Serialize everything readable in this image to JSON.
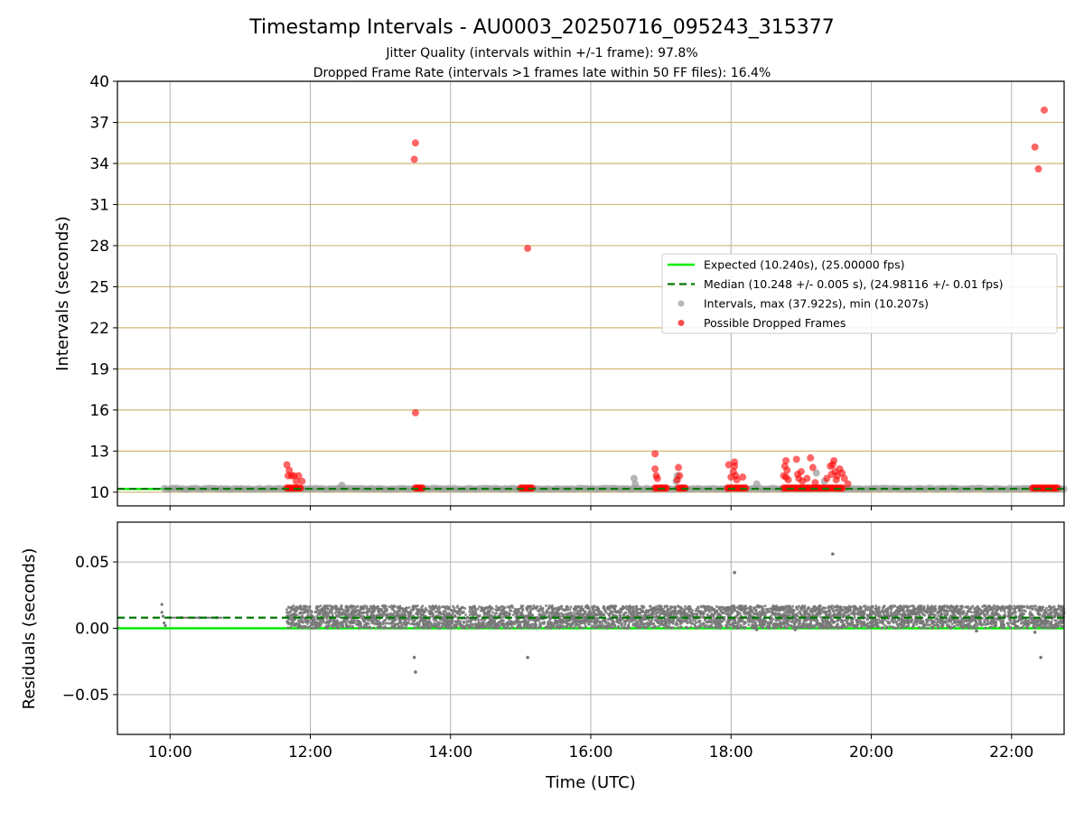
{
  "figure": {
    "title": "Timestamp Intervals - AU0003_20250716_095243_315377",
    "subtitle_1": "Jitter Quality (intervals within +/-1 frame): 97.8%",
    "subtitle_2": "Dropped Frame Rate (intervals >1 frames late within 50 FF files): 16.4%",
    "colors": {
      "expected": "#00ee00",
      "median": "#007700",
      "interval": "#999999",
      "dropped": "#ff0000",
      "hline": "#d2b778",
      "residual": "#777777"
    }
  },
  "chart_data": [
    {
      "type": "scatter",
      "name": "intervals",
      "ylabel": "Intervals (seconds)",
      "xlim": [
        "09:15",
        "22:45"
      ],
      "ylim": [
        9,
        40
      ],
      "yticks": [
        10,
        13,
        16,
        19,
        22,
        25,
        28,
        31,
        34,
        37,
        40
      ],
      "ytick_labels": [
        "10",
        "13",
        "16",
        "19",
        "22",
        "25",
        "28",
        "31",
        "34",
        "37",
        "40"
      ],
      "grid": true,
      "legend_position": "center-right",
      "legend": [
        {
          "label": "Expected (10.240s), (25.00000 fps)",
          "kind": "line-solid",
          "color": "#00ee00"
        },
        {
          "label": "Median (10.248 +/- 0.005 s), (24.98116 +/- 0.01 fps)",
          "kind": "line-dashed",
          "color": "#007700"
        },
        {
          "label": "Intervals, max (37.922s), min (10.207s)",
          "kind": "dot",
          "color": "#999999"
        },
        {
          "label": "Possible Dropped Frames",
          "kind": "dot",
          "color": "#ff0000"
        }
      ],
      "expected": 10.24,
      "median": 10.248,
      "interval_band": {
        "x_start": "09:55",
        "x_end": "22:45",
        "y": 10.248
      },
      "dropped_clusters": [
        {
          "x_start": "11:40",
          "x_end": "11:52",
          "y": 10.3
        },
        {
          "x_start": "13:30",
          "x_end": "13:37",
          "y": 10.3
        },
        {
          "x_start": "15:00",
          "x_end": "15:10",
          "y": 10.3
        },
        {
          "x_start": "16:55",
          "x_end": "17:05",
          "y": 10.3
        },
        {
          "x_start": "17:15",
          "x_end": "17:22",
          "y": 10.3
        },
        {
          "x_start": "17:57",
          "x_end": "18:14",
          "y": 10.3
        },
        {
          "x_start": "18:45",
          "x_end": "19:36",
          "y": 10.3
        },
        {
          "x_start": "22:18",
          "x_end": "22:40",
          "y": 10.3
        }
      ],
      "gray_points": [
        {
          "x": "16:37",
          "y": 11.0
        },
        {
          "x": "16:38",
          "y": 10.6
        },
        {
          "x": "17:13",
          "y": 10.8
        },
        {
          "x": "17:14",
          "y": 11.2
        },
        {
          "x": "18:22",
          "y": 10.6
        },
        {
          "x": "19:13",
          "y": 11.4
        },
        {
          "x": "19:20",
          "y": 10.8
        },
        {
          "x": "12:27",
          "y": 10.5
        }
      ],
      "dropped_points": [
        {
          "x": "13:30",
          "y": 35.5
        },
        {
          "x": "13:29",
          "y": 34.3
        },
        {
          "x": "13:30",
          "y": 15.8
        },
        {
          "x": "15:06",
          "y": 27.8
        },
        {
          "x": "22:20",
          "y": 35.2
        },
        {
          "x": "22:23",
          "y": 33.6
        },
        {
          "x": "22:28",
          "y": 37.9
        },
        {
          "x": "11:40",
          "y": 12.0
        },
        {
          "x": "11:42",
          "y": 11.6
        },
        {
          "x": "11:41",
          "y": 11.2
        },
        {
          "x": "11:44",
          "y": 11.2
        },
        {
          "x": "11:46",
          "y": 11.2
        },
        {
          "x": "11:48",
          "y": 10.8
        },
        {
          "x": "11:50",
          "y": 11.2
        },
        {
          "x": "11:53",
          "y": 10.8
        },
        {
          "x": "16:55",
          "y": 12.8
        },
        {
          "x": "16:55",
          "y": 11.7
        },
        {
          "x": "16:56",
          "y": 11.2
        },
        {
          "x": "16:57",
          "y": 11.0
        },
        {
          "x": "17:15",
          "y": 11.8
        },
        {
          "x": "17:16",
          "y": 11.2
        },
        {
          "x": "17:14",
          "y": 10.9
        },
        {
          "x": "17:58",
          "y": 12.0
        },
        {
          "x": "18:03",
          "y": 12.2
        },
        {
          "x": "18:03",
          "y": 11.9
        },
        {
          "x": "18:02",
          "y": 11.5
        },
        {
          "x": "18:00",
          "y": 11.1
        },
        {
          "x": "18:04",
          "y": 11.2
        },
        {
          "x": "18:05",
          "y": 10.9
        },
        {
          "x": "18:10",
          "y": 11.1
        },
        {
          "x": "18:47",
          "y": 12.3
        },
        {
          "x": "18:46",
          "y": 11.9
        },
        {
          "x": "18:48",
          "y": 11.6
        },
        {
          "x": "18:45",
          "y": 11.2
        },
        {
          "x": "18:47",
          "y": 11.1
        },
        {
          "x": "18:49",
          "y": 10.9
        },
        {
          "x": "18:56",
          "y": 12.4
        },
        {
          "x": "18:57",
          "y": 11.3
        },
        {
          "x": "18:58",
          "y": 11.0
        },
        {
          "x": "19:00",
          "y": 11.5
        },
        {
          "x": "19:01",
          "y": 10.8
        },
        {
          "x": "19:05",
          "y": 11.0
        },
        {
          "x": "19:08",
          "y": 12.5
        },
        {
          "x": "19:10",
          "y": 11.8
        },
        {
          "x": "19:12",
          "y": 10.7
        },
        {
          "x": "19:22",
          "y": 11.0
        },
        {
          "x": "19:25",
          "y": 11.9
        },
        {
          "x": "19:26",
          "y": 11.3
        },
        {
          "x": "19:27",
          "y": 12.0
        },
        {
          "x": "19:28",
          "y": 12.3
        },
        {
          "x": "19:29",
          "y": 11.5
        },
        {
          "x": "19:30",
          "y": 10.9
        },
        {
          "x": "19:31",
          "y": 11.2
        },
        {
          "x": "19:33",
          "y": 11.7
        },
        {
          "x": "19:35",
          "y": 11.4
        },
        {
          "x": "19:37",
          "y": 11.0
        },
        {
          "x": "19:40",
          "y": 10.6
        }
      ]
    },
    {
      "type": "scatter",
      "name": "residuals",
      "xlabel": "Time (UTC)",
      "ylabel": "Residuals (seconds)",
      "xlim": [
        "09:15",
        "22:45"
      ],
      "ylim": [
        -0.08,
        0.08
      ],
      "xticks": [
        "10:00",
        "12:00",
        "14:00",
        "16:00",
        "18:00",
        "20:00",
        "22:00"
      ],
      "xtick_labels": [
        "10:00",
        "12:00",
        "14:00",
        "16:00",
        "18:00",
        "20:00",
        "22:00"
      ],
      "yticks": [
        -0.05,
        0.0,
        0.05
      ],
      "ytick_labels": [
        "−0.05",
        "0.00",
        "0.05"
      ],
      "grid": true,
      "expected": 0.0,
      "median": 0.008,
      "noise_band": {
        "x_start": "11:40",
        "x_end": "22:45",
        "y_low": 0.0,
        "y_high": 0.017
      },
      "early_points": [
        {
          "x": "09:53",
          "y": 0.018
        },
        {
          "x": "09:53",
          "y": 0.012
        },
        {
          "x": "09:54",
          "y": 0.009
        },
        {
          "x": "09:55",
          "y": 0.004
        },
        {
          "x": "09:56",
          "y": 0.002
        },
        {
          "x": "10:00",
          "y": 0.008
        },
        {
          "x": "10:10",
          "y": 0.008
        },
        {
          "x": "10:25",
          "y": 0.008
        },
        {
          "x": "10:40",
          "y": 0.008
        }
      ],
      "outliers": [
        {
          "x": "13:29",
          "y": -0.022
        },
        {
          "x": "13:30",
          "y": -0.033
        },
        {
          "x": "15:06",
          "y": -0.022
        },
        {
          "x": "18:03",
          "y": 0.042
        },
        {
          "x": "19:27",
          "y": 0.056
        },
        {
          "x": "21:30",
          "y": -0.002
        },
        {
          "x": "22:20",
          "y": -0.003
        },
        {
          "x": "22:25",
          "y": -0.022
        },
        {
          "x": "18:22",
          "y": -0.001
        },
        {
          "x": "18:55",
          "y": -0.001
        }
      ]
    }
  ]
}
